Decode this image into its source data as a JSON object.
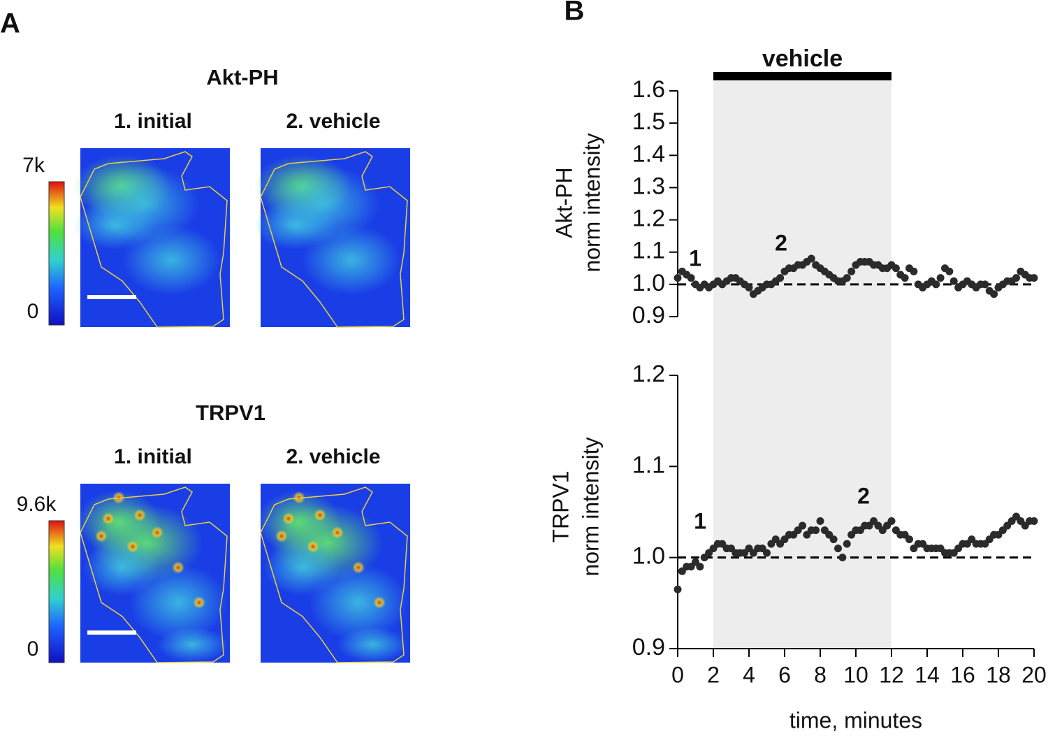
{
  "panels": {
    "a": {
      "label": "A",
      "groups": [
        {
          "title": "Akt-PH",
          "images": [
            "1. initial",
            "2. vehicle"
          ],
          "colorbar": [
            "7k",
            "0"
          ]
        },
        {
          "title": "TRPV1",
          "images": [
            "1. initial",
            "2. vehicle"
          ],
          "colorbar": [
            "9.6k",
            "0"
          ]
        }
      ]
    },
    "b": {
      "label": "B"
    }
  },
  "chart_data": [
    {
      "type": "scatter",
      "ylabel": [
        "Akt-PH",
        "norm intensity"
      ],
      "color": "#2b2b2b",
      "shade": [
        2,
        12
      ],
      "shade_label": "vehicle",
      "reference_line": 1,
      "annotations": [
        "1",
        "2"
      ],
      "xlim": [
        0,
        20
      ],
      "ylim": [
        0.9,
        1.6
      ],
      "yticks": [
        0.9,
        {
          "value": 1,
          "label": "1.0"
        },
        1.1,
        1.2,
        1.3,
        1.4,
        1.5,
        1.6
      ],
      "x": [
        0,
        0.25,
        0.5,
        0.75,
        1,
        1.25,
        1.5,
        1.75,
        2,
        2.25,
        2.5,
        2.75,
        3,
        3.25,
        3.5,
        3.75,
        4,
        4.25,
        4.5,
        4.75,
        5,
        5.25,
        5.5,
        5.75,
        6,
        6.25,
        6.5,
        6.75,
        7,
        7.25,
        7.5,
        7.75,
        8,
        8.25,
        8.5,
        8.75,
        9,
        9.25,
        9.5,
        9.75,
        10,
        10.25,
        10.5,
        10.75,
        11,
        11.25,
        11.5,
        11.75,
        12,
        12.25,
        12.5,
        12.75,
        13,
        13.25,
        13.5,
        13.75,
        14,
        14.25,
        14.5,
        14.75,
        15,
        15.25,
        15.5,
        15.75,
        16,
        16.25,
        16.5,
        16.75,
        17,
        17.25,
        17.5,
        17.75,
        18,
        18.25,
        18.5,
        18.75,
        19,
        19.25,
        19.5,
        19.75,
        20
      ],
      "values": [
        1.02,
        1.04,
        1.03,
        1.02,
        1.0,
        0.99,
        1.0,
        0.99,
        1.0,
        1.01,
        1.0,
        1.01,
        1.02,
        1.02,
        1.01,
        1.0,
        0.99,
        0.97,
        0.98,
        0.99,
        1.0,
        1.0,
        1.01,
        1.02,
        1.04,
        1.05,
        1.05,
        1.06,
        1.06,
        1.07,
        1.08,
        1.06,
        1.05,
        1.04,
        1.03,
        1.02,
        1.01,
        1.01,
        1.02,
        1.04,
        1.06,
        1.07,
        1.07,
        1.07,
        1.06,
        1.06,
        1.05,
        1.05,
        1.06,
        1.05,
        1.03,
        1.02,
        1.05,
        1.04,
        1.0,
        0.99,
        1.0,
        1.01,
        1.0,
        1.02,
        1.05,
        1.04,
        1.01,
        0.99,
        1.0,
        1.01,
        1.0,
        0.99,
        1.0,
        1.0,
        0.98,
        0.97,
        0.99,
        1.0,
        1.01,
        1.01,
        1.02,
        1.04,
        1.03,
        1.02,
        1.02
      ]
    },
    {
      "type": "scatter",
      "ylabel": [
        "TRPV1",
        "norm intensity"
      ],
      "xlabel": "time, minutes",
      "color": "#2b2b2b",
      "shade": [
        2,
        12
      ],
      "reference_line": 1,
      "annotations": [
        "1",
        "2"
      ],
      "xlim": [
        0,
        20
      ],
      "ylim": [
        0.9,
        1.2
      ],
      "xticks": [
        0,
        2,
        4,
        6,
        8,
        10,
        12,
        14,
        16,
        18,
        20
      ],
      "yticks": [
        0.9,
        {
          "value": 1,
          "label": "1.0"
        },
        1.1,
        1.2
      ],
      "x": [
        0,
        0.25,
        0.5,
        0.75,
        1,
        1.25,
        1.5,
        1.75,
        2,
        2.25,
        2.5,
        2.75,
        3,
        3.25,
        3.5,
        3.75,
        4,
        4.25,
        4.5,
        4.75,
        5,
        5.25,
        5.5,
        5.75,
        6,
        6.25,
        6.5,
        6.75,
        7,
        7.25,
        7.5,
        7.75,
        8,
        8.25,
        8.5,
        8.75,
        9,
        9.25,
        9.5,
        9.75,
        10,
        10.25,
        10.5,
        10.75,
        11,
        11.25,
        11.5,
        11.75,
        12,
        12.25,
        12.5,
        12.75,
        13,
        13.25,
        13.5,
        13.75,
        14,
        14.25,
        14.5,
        14.75,
        15,
        15.25,
        15.5,
        15.75,
        16,
        16.25,
        16.5,
        16.75,
        17,
        17.25,
        17.5,
        17.75,
        18,
        18.25,
        18.5,
        18.75,
        19,
        19.25,
        19.5,
        19.75,
        20
      ],
      "values": [
        0.965,
        0.985,
        0.99,
        0.99,
        0.995,
        0.99,
        1.0,
        1.005,
        1.01,
        1.015,
        1.015,
        1.01,
        1.01,
        1.005,
        1.005,
        1.005,
        1.01,
        1.005,
        1.01,
        1.01,
        1.005,
        1.015,
        1.02,
        1.015,
        1.02,
        1.025,
        1.025,
        1.03,
        1.035,
        1.025,
        1.03,
        1.03,
        1.04,
        1.03,
        1.025,
        1.02,
        1.01,
        1.0,
        1.015,
        1.025,
        1.03,
        1.03,
        1.035,
        1.035,
        1.04,
        1.035,
        1.03,
        1.035,
        1.04,
        1.03,
        1.025,
        1.025,
        1.02,
        1.01,
        1.015,
        1.015,
        1.01,
        1.01,
        1.01,
        1.01,
        1.005,
        1.005,
        1.005,
        1.01,
        1.015,
        1.015,
        1.02,
        1.015,
        1.015,
        1.015,
        1.02,
        1.025,
        1.025,
        1.03,
        1.035,
        1.04,
        1.045,
        1.04,
        1.035,
        1.04,
        1.04
      ]
    }
  ]
}
